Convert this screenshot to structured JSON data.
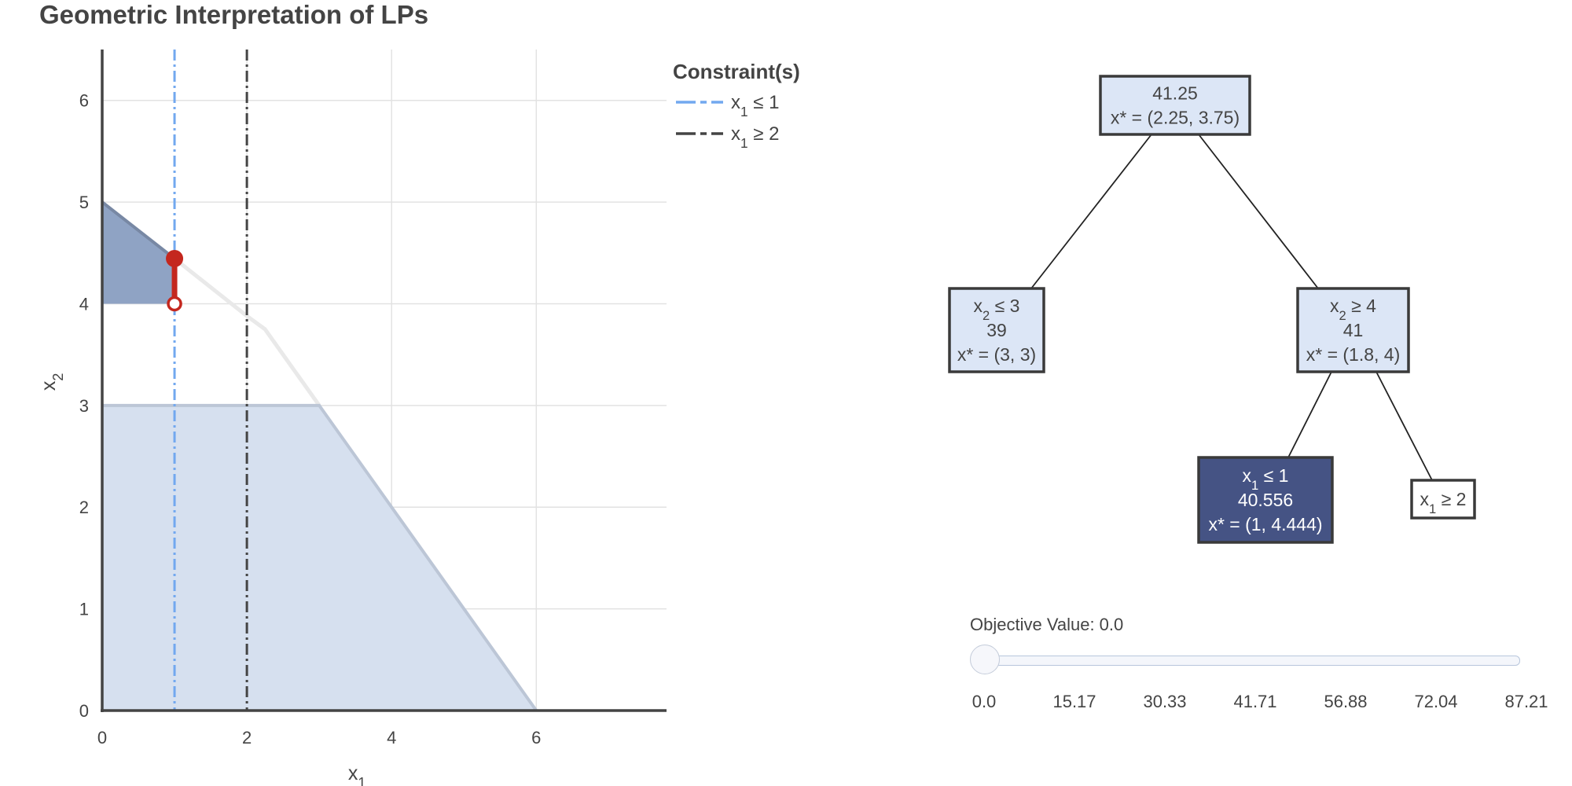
{
  "chart_data": [
    {
      "type": "area",
      "title": "Geometric Interpretation of LPs",
      "xlabel": "x",
      "xlabel_sub": "1",
      "ylabel": "x",
      "ylabel_sub": "2",
      "xlim": [
        0,
        7.8
      ],
      "ylim": [
        0,
        6.5
      ],
      "xticks": [
        0,
        2,
        4,
        6
      ],
      "yticks": [
        0,
        1,
        2,
        3,
        4,
        5,
        6
      ],
      "grid": true,
      "regions": [
        {
          "name": "x2 <= 3 subproblem",
          "points": [
            [
              0,
              0
            ],
            [
              6,
              0
            ],
            [
              3,
              3
            ],
            [
              0,
              3
            ]
          ],
          "color": "#d6e0ef"
        },
        {
          "name": "x1 <= 1 subproblem",
          "points": [
            [
              0,
              4
            ],
            [
              1,
              4
            ],
            [
              1,
              4.444
            ],
            [
              0,
              5
            ]
          ],
          "color": "#8fa3c4"
        }
      ],
      "boundary_edges": [
        {
          "points": [
            [
              0,
              3
            ],
            [
              3,
              3
            ],
            [
              6,
              0
            ]
          ],
          "color": "#bcc6d6"
        },
        {
          "points": [
            [
              0,
              5
            ],
            [
              1,
              4.444
            ]
          ],
          "color": "#7888a4"
        }
      ],
      "faded_boundary": {
        "points": [
          [
            1,
            4.444
          ],
          [
            2,
            3.88
          ],
          [
            2.25,
            3.75
          ],
          [
            3,
            3
          ]
        ],
        "color": "#e9e9e9"
      },
      "constraint_lines": [
        {
          "x": 1,
          "label": "x",
          "sub": "1",
          "rel": "≤ 1",
          "color": "#72a8ef",
          "dash": "dashdot"
        },
        {
          "x": 2,
          "label": "x",
          "sub": "1",
          "rel": "≥ 2",
          "color": "#444444",
          "dash": "dashdot"
        }
      ],
      "highlight_segment": {
        "x": 1,
        "y_from": 4,
        "y_to": 4.444,
        "color": "#c4271e"
      },
      "legend": {
        "title": "Constraint(s)",
        "placement": "top-right"
      }
    },
    {
      "type": "tree",
      "nodes": [
        {
          "id": "root",
          "lines": [
            {
              "text": "41.25"
            },
            {
              "text": "x* = (2.25, 3.75)"
            }
          ],
          "style": "light"
        },
        {
          "id": "left",
          "lines": [
            {
              "base": "x",
              "sub": "2",
              "rest": " ≤ 3"
            },
            {
              "text": "39"
            },
            {
              "text": "x* = (3, 3)"
            }
          ],
          "style": "light"
        },
        {
          "id": "right",
          "lines": [
            {
              "base": "x",
              "sub": "2",
              "rest": " ≥ 4"
            },
            {
              "text": "41"
            },
            {
              "text": "x* = (1.8, 4)"
            }
          ],
          "style": "light"
        },
        {
          "id": "rl",
          "lines": [
            {
              "base": "x",
              "sub": "1",
              "rest": " ≤ 1"
            },
            {
              "text": "40.556"
            },
            {
              "text": "x* = (1, 4.444)"
            }
          ],
          "style": "selected"
        },
        {
          "id": "rr",
          "lines": [
            {
              "base": "x",
              "sub": "1",
              "rest": " ≥ 2"
            }
          ],
          "style": "white"
        }
      ],
      "edges": [
        [
          "root",
          "left"
        ],
        [
          "root",
          "right"
        ],
        [
          "right",
          "rl"
        ],
        [
          "right",
          "rr"
        ]
      ]
    }
  ],
  "slider": {
    "label": "Objective Value: 0.0",
    "value": 0.0,
    "min": 0.0,
    "max": 87.21,
    "ticks": [
      "0.0",
      "15.17",
      "30.33",
      "41.71",
      "56.88",
      "72.04",
      "87.21"
    ]
  },
  "colors": {
    "text": "#444444",
    "grid": "#e2e2e2",
    "node_light": "#dce6f6",
    "node_selected": "#455384",
    "node_border": "#3a3a3a"
  }
}
